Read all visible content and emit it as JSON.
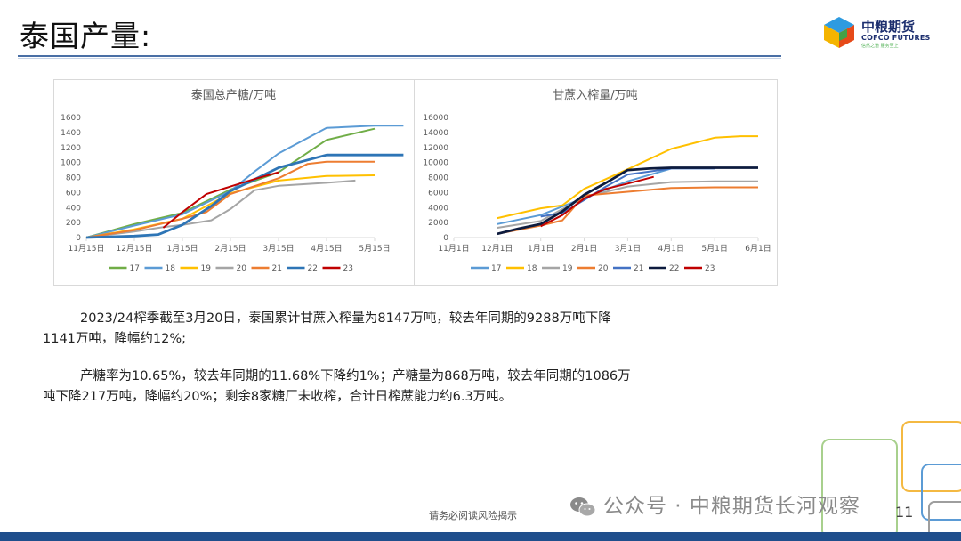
{
  "header": {
    "title": "泰国产量:",
    "logo_cn": "中粮期货",
    "logo_en": "COFCO FUTURES",
    "logo_tag": "信然之道 服务至上"
  },
  "colors": {
    "series": [
      "#70ad47",
      "#5b9bd5",
      "#ffc000",
      "#a5a5a5",
      "#ed7d31",
      "#2e75b6",
      "#c00000"
    ],
    "series_right": [
      "#5b9bd5",
      "#ffc000",
      "#a5a5a5",
      "#ed7d31",
      "#4472c4",
      "#0d1b3e",
      "#c00000"
    ],
    "rule": "#4a6fa5",
    "footer_bar": "#1f4e8c"
  },
  "chart_data": [
    {
      "type": "line",
      "title": "泰国总产糖/万吨",
      "categories": [
        "11月15日",
        "12月15日",
        "1月15日",
        "2月15日",
        "3月15日",
        "4月15日",
        "5月15日"
      ],
      "ylim": [
        0,
        1600
      ],
      "yticks": [
        0,
        200,
        400,
        600,
        800,
        1000,
        1200,
        1400,
        1600
      ],
      "grid": false,
      "legend": "bottom",
      "series": [
        {
          "name": "17",
          "x": [
            0,
            1,
            2,
            3,
            4,
            5,
            6
          ],
          "values": [
            0,
            180,
            330,
            640,
            870,
            1300,
            1450
          ]
        },
        {
          "name": "18",
          "x": [
            0,
            1,
            2,
            3,
            3.5,
            4,
            5,
            6,
            6.6
          ],
          "values": [
            0,
            160,
            310,
            620,
            880,
            1120,
            1460,
            1490,
            1490
          ]
        },
        {
          "name": "19",
          "x": [
            0,
            1,
            2,
            3,
            4,
            5,
            6
          ],
          "values": [
            0,
            110,
            250,
            590,
            760,
            820,
            830
          ]
        },
        {
          "name": "20",
          "x": [
            0,
            1,
            1.6,
            2,
            2.6,
            3,
            3.5,
            4,
            5,
            5.6
          ],
          "values": [
            0,
            80,
            140,
            170,
            230,
            380,
            630,
            690,
            730,
            760
          ]
        },
        {
          "name": "21",
          "x": [
            0,
            1,
            2,
            2.5,
            3,
            4,
            4.6,
            5,
            6
          ],
          "values": [
            0,
            100,
            250,
            340,
            580,
            790,
            980,
            1010,
            1010
          ]
        },
        {
          "name": "22",
          "x": [
            0,
            1,
            1.5,
            2,
            2.6,
            3,
            4,
            5,
            6,
            6.6
          ],
          "values": [
            0,
            20,
            40,
            170,
            420,
            620,
            930,
            1100,
            1100,
            1100
          ]
        },
        {
          "name": "23",
          "x": [
            1.6,
            2,
            2.5,
            3,
            3.5,
            4
          ],
          "values": [
            130,
            340,
            580,
            680,
            780,
            870
          ]
        }
      ]
    },
    {
      "type": "line",
      "title": "甘蔗入榨量/万吨",
      "categories": [
        "11月1日",
        "12月1日",
        "1月1日",
        "2月1日",
        "3月1日",
        "4月1日",
        "5月1日",
        "6月1日"
      ],
      "ylim": [
        0,
        16000
      ],
      "yticks": [
        0,
        2000,
        4000,
        6000,
        8000,
        10000,
        12000,
        14000,
        16000
      ],
      "grid": false,
      "legend": "bottom",
      "series": [
        {
          "name": "17",
          "x": [
            1,
            2,
            3,
            4,
            5
          ],
          "values": [
            1800,
            3000,
            5300,
            7500,
            9200
          ]
        },
        {
          "name": "18",
          "x": [
            1,
            2,
            2.5,
            3,
            4,
            5,
            6,
            6.6,
            7
          ],
          "values": [
            2600,
            3900,
            4300,
            6500,
            9100,
            11800,
            13300,
            13500,
            13500
          ]
        },
        {
          "name": "19",
          "x": [
            1,
            2,
            3,
            4,
            5,
            6,
            7
          ],
          "values": [
            1300,
            2200,
            5400,
            6800,
            7400,
            7500,
            7500
          ]
        },
        {
          "name": "20",
          "x": [
            1,
            2,
            2.5,
            3,
            4,
            5,
            6,
            7
          ],
          "values": [
            500,
            1600,
            2300,
            5600,
            6100,
            6600,
            6700,
            6700
          ]
        },
        {
          "name": "21",
          "x": [
            2,
            2.5,
            3,
            3.5,
            4,
            5,
            6
          ],
          "values": [
            2800,
            3300,
            5000,
            6800,
            8400,
            9200,
            9200
          ]
        },
        {
          "name": "22",
          "x": [
            1,
            1.5,
            2,
            2.5,
            3,
            3.5,
            4,
            4.5,
            5,
            6,
            7
          ],
          "values": [
            500,
            1200,
            1800,
            3500,
            5700,
            7300,
            9000,
            9200,
            9300,
            9300,
            9300
          ]
        },
        {
          "name": "23",
          "x": [
            2,
            2.5,
            3,
            3.5,
            4,
            4.6
          ],
          "values": [
            1500,
            3000,
            5200,
            6500,
            7200,
            8100
          ]
        }
      ]
    }
  ],
  "paragraphs": {
    "p1_line1": "2023/24榨季截至3月20日，泰国累计甘蔗入榨量为8147万吨，较去年同期的9288万吨下降",
    "p1_line2": "1141万吨，降幅约12%;",
    "p2_line1": "产糖率为10.65%，较去年同期的11.68%下降约1%；产糖量为868万吨，较去年同期的1086万",
    "p2_line2": "吨下降217万吨，降幅约20%；剩余8家糖厂未收榨，合计日榨蔗能力约6.3万吨。"
  },
  "footer": {
    "note": "请务必阅读风险揭示",
    "page": "11",
    "watermark": "公众号 · 中粮期货长河观察"
  }
}
